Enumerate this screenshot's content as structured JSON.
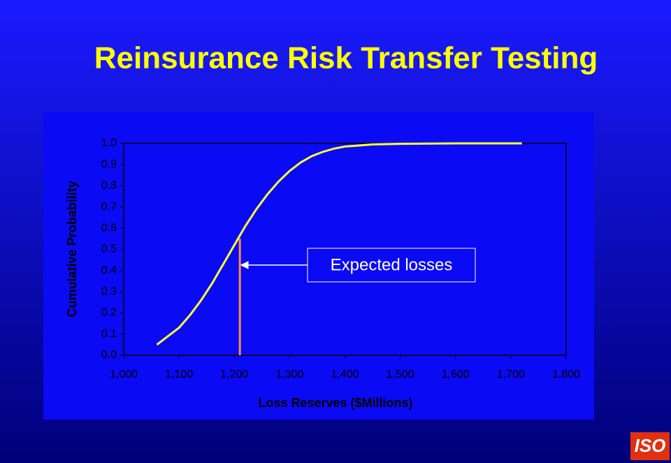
{
  "chart_data": {
    "type": "line",
    "title": "Reinsurance Risk Transfer Testing",
    "x_label": "Loss Reserves ($Millions)",
    "y_label": "Cumulative Probability",
    "x": [
      1060,
      1080,
      1100,
      1120,
      1140,
      1160,
      1180,
      1200,
      1220,
      1240,
      1260,
      1280,
      1300,
      1320,
      1340,
      1360,
      1380,
      1400,
      1450,
      1500,
      1600,
      1720
    ],
    "series": [
      {
        "name": "Cumulative Probability",
        "color": "#ffff33",
        "values": [
          0.05,
          0.09,
          0.13,
          0.19,
          0.26,
          0.34,
          0.43,
          0.52,
          0.61,
          0.69,
          0.76,
          0.82,
          0.87,
          0.91,
          0.94,
          0.96,
          0.975,
          0.985,
          0.995,
          0.998,
          1.0,
          1.0
        ]
      }
    ],
    "xlim": [
      1000,
      1800
    ],
    "xticks": [
      {
        "value": 1000,
        "label": "1,000"
      },
      {
        "value": 1100,
        "label": "1,100"
      },
      {
        "value": 1200,
        "label": "1,200"
      },
      {
        "value": 1300,
        "label": "1,300"
      },
      {
        "value": 1400,
        "label": "1,400"
      },
      {
        "value": 1500,
        "label": "1,500"
      },
      {
        "value": 1600,
        "label": "1,600"
      },
      {
        "value": 1700,
        "label": "1,700"
      },
      {
        "value": 1800,
        "label": "1,800"
      }
    ],
    "ylim": [
      0,
      1
    ],
    "yticks": [
      {
        "value": 0,
        "label": "0.0"
      },
      0.1,
      0.2,
      0.3,
      0.4,
      0.5,
      0.6,
      0.7,
      0.8,
      0.9,
      {
        "value": 1,
        "label": "1.0"
      }
    ],
    "grid": false,
    "expected_loss": {
      "label": "Expected losses",
      "x": 1210,
      "y": 0.55,
      "color": "#ff8c40"
    },
    "logo": "ISO"
  }
}
